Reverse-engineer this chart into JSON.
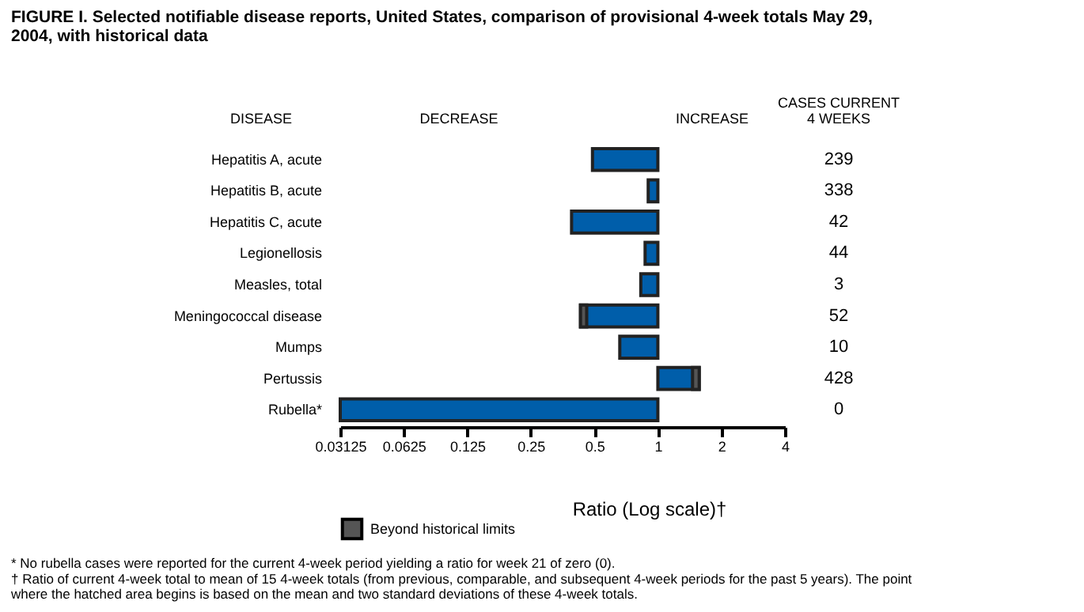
{
  "chart_data": {
    "type": "bar",
    "orientation": "horizontal",
    "log": "x",
    "title": "FIGURE I. Selected notifiable disease reports, United States, comparison of provisional 4-week totals May 29, 2004, with historical data",
    "xlabel": "Ratio (Log scale)†",
    "categories": [
      "Hepatitis A, acute",
      "Hepatitis B, acute",
      "Hepatitis C, acute",
      "Legionellosis",
      "Measles, total",
      "Meningococcal disease",
      "Mumps",
      "Pertussis",
      "Rubella*"
    ],
    "series": [
      {
        "color": "#005eaa",
        "base": [
          1,
          1,
          1,
          1,
          1,
          1,
          1,
          1,
          1
        ],
        "values": [
          -0.51,
          -0.1,
          -0.61,
          -0.13,
          -0.17,
          -0.57,
          -0.34,
          0.57,
          -0.96875
        ]
      },
      {
        "name": "Beyond historical limits",
        "color": "#555555",
        "base": [
          null,
          null,
          null,
          null,
          null,
          0.46,
          null,
          1.46,
          null
        ],
        "values": [
          null,
          null,
          null,
          null,
          null,
          -0.03,
          null,
          0.11,
          null
        ]
      }
    ],
    "xlim": [
      0.03125,
      4
    ],
    "xticks": [
      0.03125,
      0.0625,
      0.125,
      0.25,
      0.5,
      1,
      2,
      4
    ],
    "legend": "bottom",
    "annotations": [
      "DISEASE",
      "DECREASE",
      "INCREASE",
      "CASES CURRENT 4 WEEKS",
      "239",
      "338",
      "42",
      "44",
      "3",
      "52",
      "10",
      "428",
      "0",
      "* No rubella cases were reported for the current 4-week period yielding a ratio for week 21 of zero (0).",
      "† Ratio of current 4-week total to mean of 15 4-week totals (from previous, comparable, and subsequent 4-week periods for the past 5 years). The point where the hatched area begins is based on the mean and two standard deviations of these 4-week totals."
    ]
  }
}
